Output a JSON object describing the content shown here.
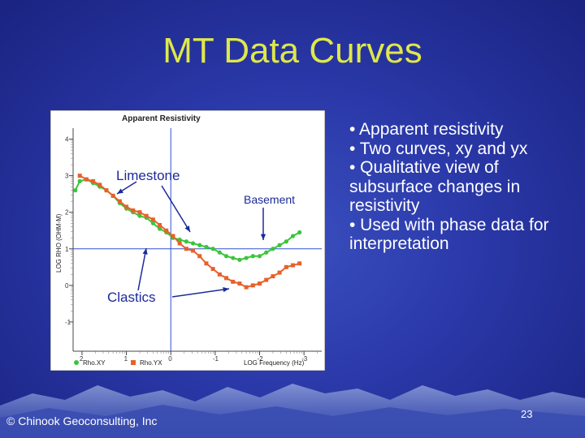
{
  "slide": {
    "title": "MT Data Curves",
    "bullets": [
      "• Apparent resistivity",
      "• Two curves, xy and yx",
      "• Qualitative view of subsurface changes in resistivity",
      "• Used with phase data for interpretation"
    ],
    "copyright": "© Chinook Geoconsulting, Inc",
    "page_number": "23"
  },
  "colors": {
    "title": "#dfe84a",
    "rhoxy": "#3cc43c",
    "rhoyx": "#e8602a",
    "reference_lines": "#3050d0"
  },
  "chart_data": {
    "type": "line",
    "title": "Apparent Resistivity",
    "xlabel": "LOG Frequency (Hz)",
    "ylabel": "LOG RHO (OHM-M)",
    "x_tick_labels": [
      "2",
      "1",
      "0",
      "-1",
      "-2",
      "-3"
    ],
    "y_tick_labels": [
      "4",
      "3",
      "2",
      "1",
      "0",
      "-1"
    ],
    "xlim": [
      2.2,
      -3.4
    ],
    "ylim": [
      -1.8,
      4.3
    ],
    "x_reversed": true,
    "reference_lines": {
      "x": 0,
      "y": 1
    },
    "grid": false,
    "legend_position": "bottom-left",
    "series": [
      {
        "name": "Rho.XY",
        "marker": "circle",
        "color": "#3cc43c",
        "x": [
          2.15,
          2.05,
          1.9,
          1.75,
          1.6,
          1.45,
          1.3,
          1.15,
          1.0,
          0.85,
          0.7,
          0.55,
          0.4,
          0.25,
          0.1,
          -0.05,
          -0.2,
          -0.35,
          -0.5,
          -0.65,
          -0.8,
          -0.95,
          -1.1,
          -1.25,
          -1.4,
          -1.55,
          -1.7,
          -1.85,
          -2.0,
          -2.15,
          -2.3,
          -2.45,
          -2.6,
          -2.75,
          -2.9
        ],
        "y": [
          2.6,
          2.85,
          2.9,
          2.8,
          2.7,
          2.6,
          2.45,
          2.25,
          2.1,
          2.0,
          1.9,
          1.85,
          1.7,
          1.55,
          1.45,
          1.3,
          1.25,
          1.2,
          1.15,
          1.1,
          1.05,
          1.0,
          0.9,
          0.8,
          0.75,
          0.7,
          0.75,
          0.8,
          0.8,
          0.9,
          1.0,
          1.1,
          1.2,
          1.35,
          1.45
        ]
      },
      {
        "name": "Rho.YX",
        "marker": "square",
        "color": "#e8602a",
        "x": [
          2.05,
          1.9,
          1.75,
          1.6,
          1.45,
          1.3,
          1.15,
          1.0,
          0.85,
          0.7,
          0.55,
          0.4,
          0.25,
          0.1,
          -0.05,
          -0.2,
          -0.35,
          -0.5,
          -0.65,
          -0.8,
          -0.95,
          -1.1,
          -1.25,
          -1.4,
          -1.55,
          -1.7,
          -1.85,
          -2.0,
          -2.15,
          -2.3,
          -2.45,
          -2.6,
          -2.75,
          -2.9
        ],
        "y": [
          3.0,
          2.9,
          2.85,
          2.75,
          2.6,
          2.45,
          2.3,
          2.15,
          2.05,
          2.0,
          1.9,
          1.8,
          1.65,
          1.5,
          1.35,
          1.15,
          1.0,
          0.95,
          0.8,
          0.6,
          0.45,
          0.3,
          0.2,
          0.1,
          0.05,
          -0.05,
          0.0,
          0.05,
          0.15,
          0.25,
          0.35,
          0.5,
          0.55,
          0.6
        ]
      }
    ]
  },
  "annotations": {
    "limestone": "Limestone",
    "basement": "Basement",
    "clastics": "Clastics"
  }
}
